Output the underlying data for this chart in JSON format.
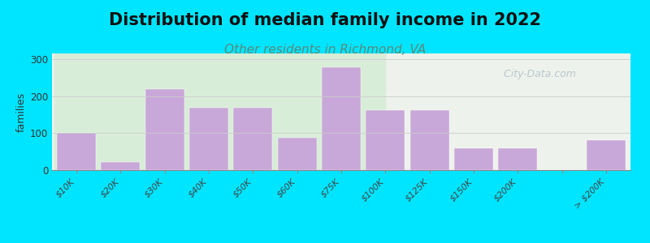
{
  "title": "Distribution of median family income in 2022",
  "subtitle": "Other residents in Richmond, VA",
  "ylabel": "families",
  "categories": [
    "$10K",
    "$20K",
    "$30K",
    "$40K",
    "$50K",
    "$60K",
    "$75K",
    "$100K",
    "$125K",
    "$150K",
    "$200K",
    "",
    "> $200K"
  ],
  "values": [
    100,
    22,
    218,
    168,
    168,
    88,
    278,
    162,
    162,
    60,
    58,
    0,
    80
  ],
  "bar_color": "#c8a8d8",
  "background_outer": "#00e5ff",
  "background_plot_left": "#d8edd8",
  "background_plot_right": "#eef2ec",
  "title_fontsize": 15,
  "subtitle_fontsize": 11,
  "subtitle_color": "#5a8a7a",
  "ylabel_fontsize": 9,
  "yticks": [
    0,
    100,
    200,
    300
  ],
  "ylim": [
    0,
    315
  ],
  "watermark": "  City-Data.com"
}
